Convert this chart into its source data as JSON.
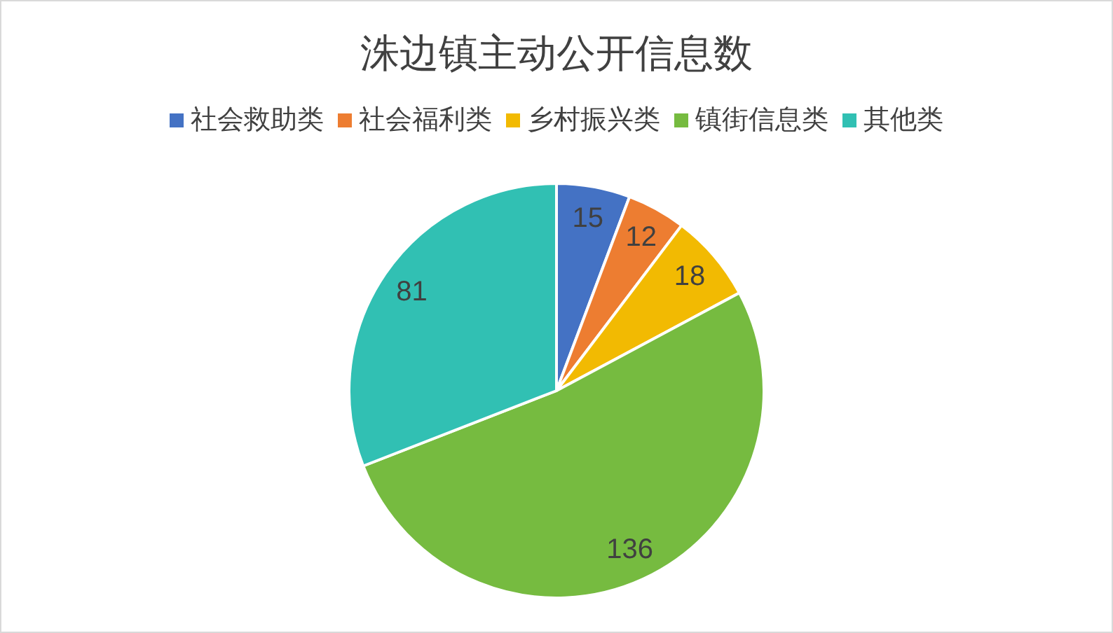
{
  "chart_data": {
    "type": "pie",
    "title": "洙边镇主动公开信息数",
    "categories": [
      "社会救助类",
      "社会福利类",
      "乡村振兴类",
      "镇街信息类",
      "其他类"
    ],
    "values": [
      15,
      12,
      18,
      136,
      81
    ],
    "colors": [
      "#4472c4",
      "#ed7d31",
      "#f2ba02",
      "#76bb40",
      "#31c0b3"
    ],
    "data_labels": true,
    "legend": "top"
  }
}
